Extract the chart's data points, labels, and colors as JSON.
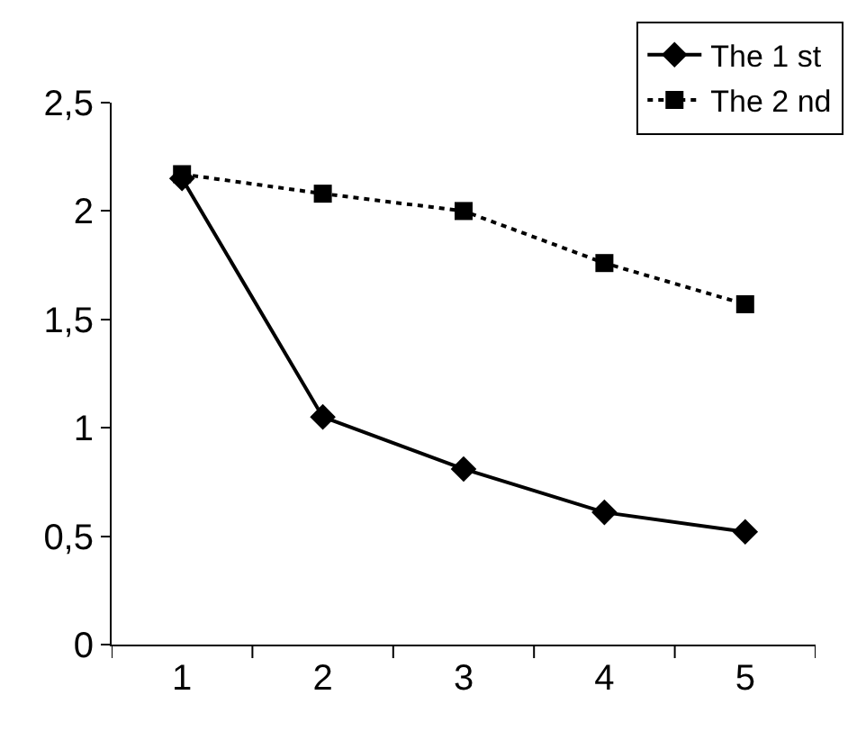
{
  "chart_data": {
    "type": "line",
    "categories": [
      "1",
      "2",
      "3",
      "4",
      "5"
    ],
    "series": [
      {
        "name": "The 1 st",
        "color": "#000000",
        "values": [
          2.15,
          1.05,
          0.81,
          0.61,
          0.52
        ],
        "marker": "diamond",
        "line_style": "solid"
      },
      {
        "name": "The 2 nd",
        "color": "#000000",
        "values": [
          2.17,
          2.08,
          2.0,
          1.76,
          1.57
        ],
        "marker": "square",
        "line_style": "dotted"
      }
    ],
    "ylim": [
      0,
      2.5
    ],
    "yticks": [
      0,
      {
        "value": 0.5,
        "label": "0,5"
      },
      1,
      {
        "value": 1.5,
        "label": "1,5"
      },
      2,
      {
        "value": 2.5,
        "label": "2,5"
      }
    ],
    "legend": "top right"
  }
}
